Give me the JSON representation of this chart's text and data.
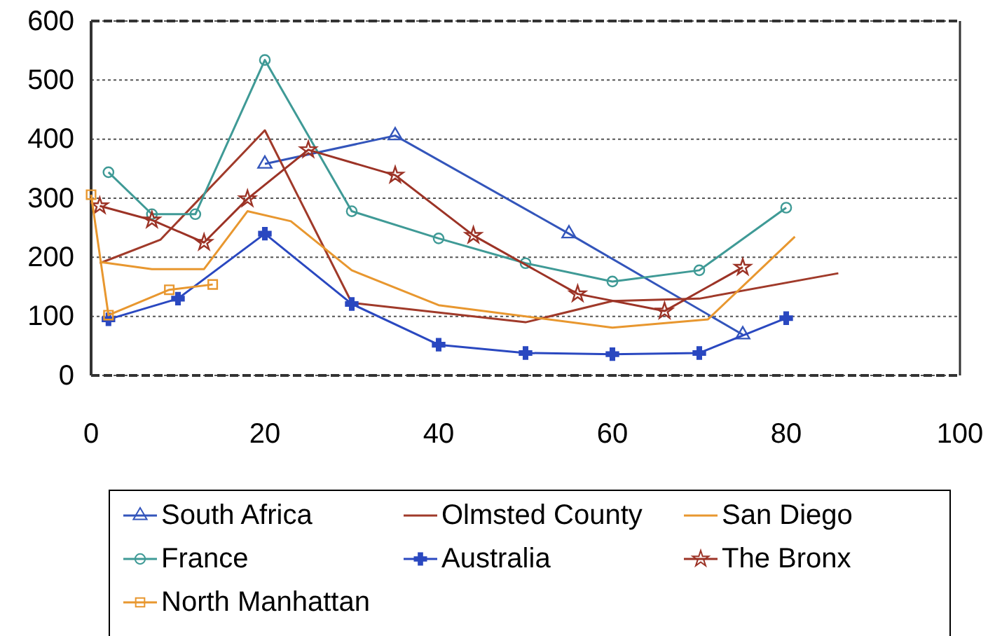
{
  "chart_data": {
    "type": "line",
    "xlim": [
      0,
      100
    ],
    "xticks": [
      0,
      20,
      40,
      60,
      80,
      100
    ],
    "ylim": [
      0,
      600
    ],
    "yticks": [
      0,
      100,
      200,
      300,
      400,
      500,
      600
    ],
    "grid": "y",
    "legend": "bottom",
    "series": [
      {
        "name": "South Africa",
        "color": "#3355bb",
        "marker": "triangle",
        "x": [
          20,
          35,
          55,
          75
        ],
        "values": [
          358,
          406,
          240,
          69
        ]
      },
      {
        "name": "Olmsted County",
        "color": "#a03a2a",
        "marker": "none",
        "x": [
          1,
          8,
          20,
          30,
          50,
          60,
          70,
          86
        ],
        "values": [
          190,
          230,
          415,
          123,
          90,
          126,
          130,
          173
        ]
      },
      {
        "name": "San Diego",
        "color": "#e8972f",
        "marker": "none",
        "x": [
          1,
          7,
          13,
          18,
          23,
          30,
          40,
          60,
          71,
          81
        ],
        "values": [
          192,
          180,
          180,
          278,
          261,
          178,
          119,
          81,
          95,
          235
        ]
      },
      {
        "name": "France",
        "color": "#3f9a96",
        "marker": "circle",
        "x": [
          2,
          7,
          12,
          20,
          30,
          40,
          50,
          60,
          70,
          80
        ],
        "values": [
          344,
          273,
          273,
          534,
          278,
          232,
          190,
          159,
          178,
          284
        ]
      },
      {
        "name": "Australia",
        "color": "#2a48c0",
        "marker": "cross",
        "x": [
          2,
          10,
          20,
          30,
          40,
          50,
          60,
          70,
          80
        ],
        "values": [
          95,
          130,
          240,
          121,
          52,
          38,
          36,
          38,
          97
        ]
      },
      {
        "name": "The Bronx",
        "color": "#9c3326",
        "marker": "star",
        "x": [
          1,
          7,
          13,
          18,
          25,
          35,
          44,
          56,
          66,
          75
        ],
        "values": [
          287,
          263,
          225,
          299,
          382,
          339,
          237,
          138,
          109,
          183
        ]
      },
      {
        "name": "North Manhattan",
        "color": "#e8972f",
        "marker": "square",
        "x": [
          0,
          2,
          9,
          14
        ],
        "values": [
          306,
          102,
          145,
          154
        ]
      }
    ]
  }
}
